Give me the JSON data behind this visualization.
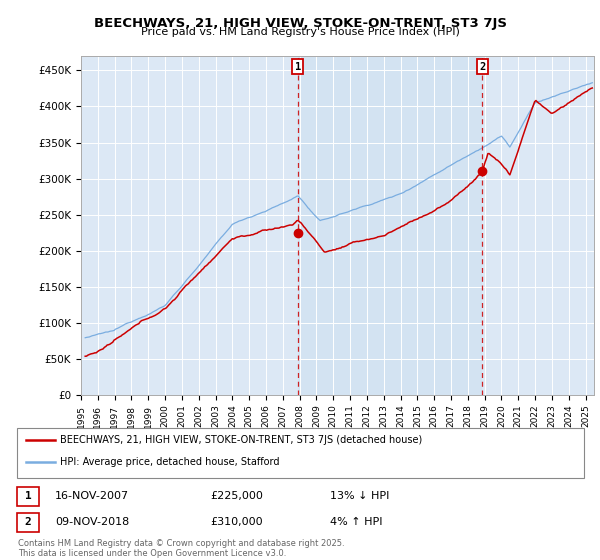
{
  "title": "BEECHWAYS, 21, HIGH VIEW, STOKE-ON-TRENT, ST3 7JS",
  "subtitle": "Price paid vs. HM Land Registry's House Price Index (HPI)",
  "ylabel_ticks": [
    "£0",
    "£50K",
    "£100K",
    "£150K",
    "£200K",
    "£250K",
    "£300K",
    "£350K",
    "£400K",
    "£450K"
  ],
  "ytick_values": [
    0,
    50000,
    100000,
    150000,
    200000,
    250000,
    300000,
    350000,
    400000,
    450000
  ],
  "ylim": [
    0,
    470000
  ],
  "xlim_start": 1995.25,
  "xlim_end": 2025.5,
  "marker1_x": 2007.88,
  "marker1_y": 225000,
  "marker2_x": 2018.86,
  "marker2_y": 310000,
  "sale_color": "#cc0000",
  "hpi_color": "#7aade0",
  "vline_color": "#cc0000",
  "bg_color": "#dce8f5",
  "bg_highlight": "#ccdff0",
  "legend_label_sale": "BEECHWAYS, 21, HIGH VIEW, STOKE-ON-TRENT, ST3 7JS (detached house)",
  "legend_label_hpi": "HPI: Average price, detached house, Stafford",
  "table_row1": [
    "1",
    "16-NOV-2007",
    "£225,000",
    "13% ↓ HPI"
  ],
  "table_row2": [
    "2",
    "09-NOV-2018",
    "£310,000",
    "4% ↑ HPI"
  ],
  "footer": "Contains HM Land Registry data © Crown copyright and database right 2025.\nThis data is licensed under the Open Government Licence v3.0."
}
